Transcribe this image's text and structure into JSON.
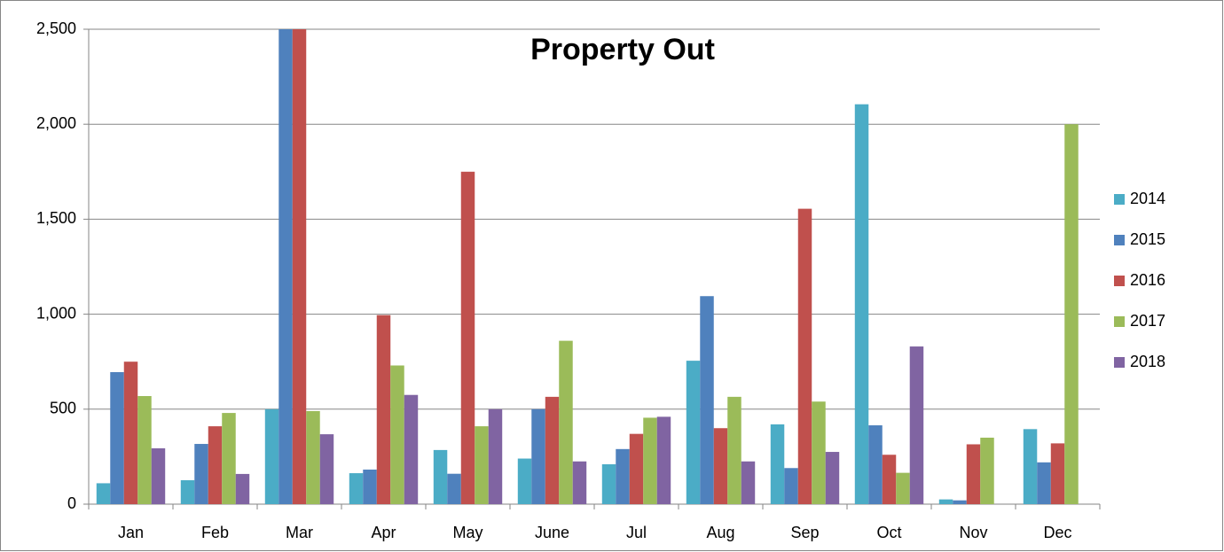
{
  "chart_data": {
    "type": "bar",
    "title": "Property Out",
    "categories": [
      "Jan",
      "Feb",
      "Mar",
      "Apr",
      "May",
      "June",
      "Jul",
      "Aug",
      "Sep",
      "Oct",
      "Nov",
      "Dec"
    ],
    "series": [
      {
        "name": "2014",
        "color": "#4bacc6",
        "values": [
          110,
          126,
          500,
          163,
          285,
          240,
          210,
          755,
          420,
          2105,
          25,
          395
        ]
      },
      {
        "name": "2015",
        "color": "#4f81bd",
        "values": [
          695,
          317,
          2500,
          182,
          160,
          500,
          290,
          1095,
          190,
          415,
          20,
          220
        ]
      },
      {
        "name": "2016",
        "color": "#c0504d",
        "values": [
          750,
          410,
          2500,
          995,
          1750,
          565,
          370,
          400,
          1555,
          260,
          315,
          320
        ]
      },
      {
        "name": "2017",
        "color": "#9bbb59",
        "values": [
          569,
          480,
          490,
          730,
          410,
          860,
          455,
          565,
          540,
          165,
          350,
          2000
        ]
      },
      {
        "name": "2018",
        "color": "#8064a2",
        "values": [
          294,
          159,
          368,
          575,
          500,
          225,
          460,
          225,
          275,
          830,
          null,
          null
        ]
      }
    ],
    "ylim": [
      0,
      2500
    ],
    "yticks": [
      0,
      500,
      {
        "value": 1000,
        "label": "1,000"
      },
      {
        "value": 1500,
        "label": "1,500"
      },
      {
        "value": 2000,
        "label": "2,000"
      },
      {
        "value": 2500,
        "label": "2,500"
      }
    ],
    "grid": true,
    "legend": "right"
  }
}
